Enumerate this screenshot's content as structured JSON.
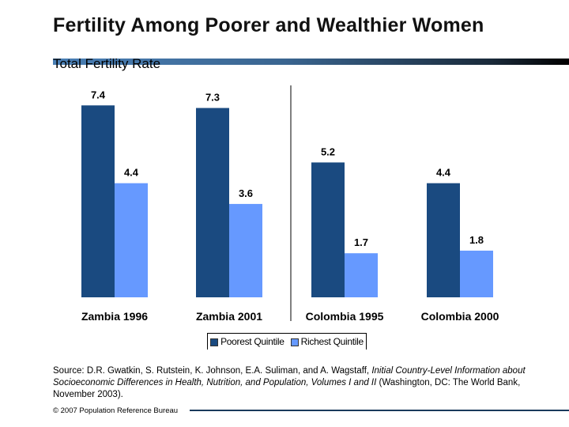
{
  "title": "Fertility Among Poorer and Wealthier Women",
  "chart_data": {
    "type": "bar",
    "title": "Total Fertility Rate",
    "categories": [
      "Zambia 1996",
      "Zambia 2001",
      "Colombia 1995",
      "Colombia 2000"
    ],
    "series": [
      {
        "name": "Poorest Quintile",
        "values": [
          7.4,
          7.3,
          5.2,
          4.4
        ],
        "color": "#1a4a80"
      },
      {
        "name": "Richest Quintile",
        "values": [
          4.4,
          3.6,
          1.7,
          1.8
        ],
        "color": "#6699ff"
      }
    ],
    "value_labels": [
      [
        "7.4",
        "7.3",
        "5.2",
        "4.4"
      ],
      [
        "4.4",
        "3.6",
        "1.7",
        "1.8"
      ]
    ],
    "ylim": [
      0,
      8
    ],
    "grid": false,
    "legend": "bottom"
  },
  "source": {
    "prefix": "Source: D.R. Gwatkin, S. Rutstein, K. Johnson, E.A. Suliman, and A. Wagstaff, ",
    "italic": "Initial Country-Level Information about Socioeconomic Differences in Health, Nutrition, and Population, Volumes I and II",
    "suffix": " (Washington, DC: The World Bank, November 2003)."
  },
  "footer": "© 2007 Population Reference Bureau"
}
